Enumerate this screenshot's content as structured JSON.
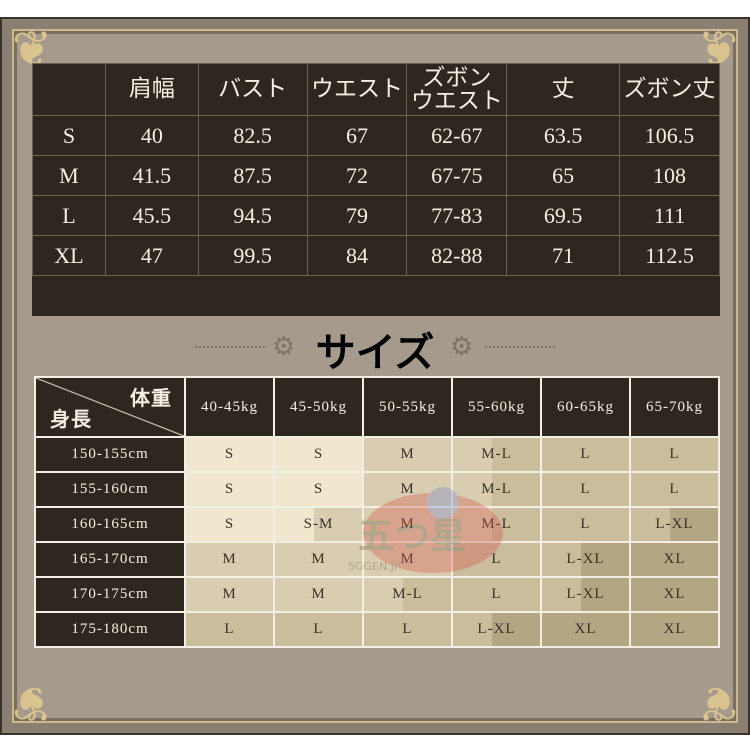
{
  "measurements": {
    "headers": [
      "",
      "肩幅",
      "バスト",
      "ウエスト",
      "ズボン\nウエスト",
      "丈",
      "ズボン丈"
    ],
    "rows": [
      [
        "S",
        "40",
        "82.5",
        "67",
        "62-67",
        "63.5",
        "106.5"
      ],
      [
        "M",
        "41.5",
        "87.5",
        "72",
        "67-75",
        "65",
        "108"
      ],
      [
        "L",
        "45.5",
        "94.5",
        "79",
        "77-83",
        "69.5",
        "111"
      ],
      [
        "XL",
        "47",
        "99.5",
        "84",
        "82-88",
        "71",
        "112.5"
      ]
    ]
  },
  "title": "サイズ",
  "size_guide": {
    "corner_top": "体重",
    "corner_bottom": "身長",
    "weights": [
      "40-45kg",
      "45-50kg",
      "50-55kg",
      "55-60kg",
      "60-65kg",
      "65-70kg"
    ],
    "rows": [
      {
        "height": "150-155cm",
        "sizes": [
          "S",
          "S",
          "M",
          "M-L",
          "L",
          "L"
        ]
      },
      {
        "height": "155-160cm",
        "sizes": [
          "S",
          "S",
          "M",
          "M-L",
          "L",
          "L"
        ]
      },
      {
        "height": "160-165cm",
        "sizes": [
          "S",
          "S-M",
          "M",
          "M-L",
          "L",
          "L-XL"
        ]
      },
      {
        "height": "165-170cm",
        "sizes": [
          "M",
          "M",
          "M",
          "L",
          "L-XL",
          "XL"
        ]
      },
      {
        "height": "170-175cm",
        "sizes": [
          "M",
          "M",
          "M-L",
          "L",
          "L-XL",
          "XL"
        ]
      },
      {
        "height": "175-180cm",
        "sizes": [
          "L",
          "L",
          "L",
          "L-XL",
          "XL",
          "XL"
        ]
      }
    ]
  },
  "shade_colors": {
    "S": "#efe8cf",
    "M": "#d8cdb0",
    "L": "#c9bd9c",
    "XL": "#b3a683"
  },
  "watermark": {
    "logo_text": "五つ星",
    "site": "5GGEN.JP"
  }
}
